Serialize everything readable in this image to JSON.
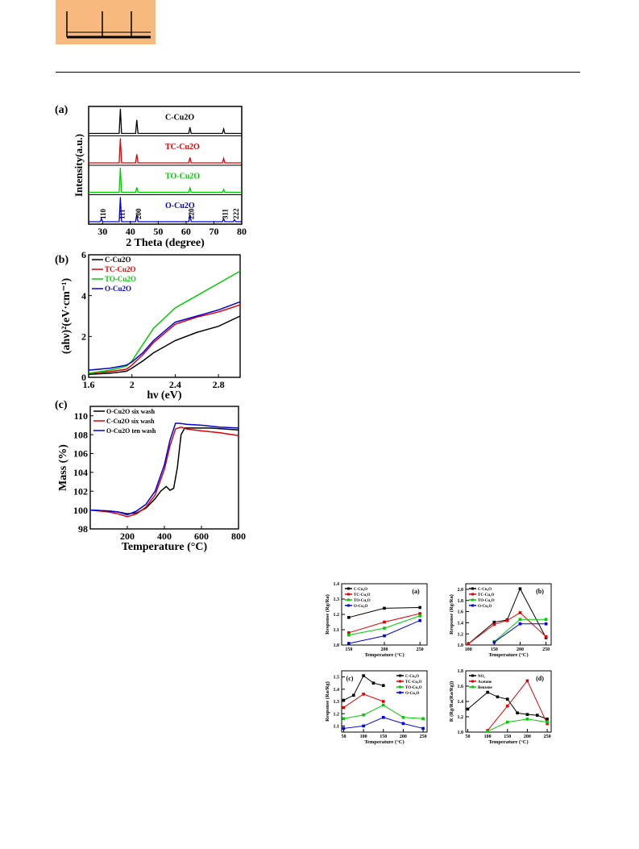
{
  "header": {
    "logo": "journal-logo"
  },
  "figure1": {
    "panels": [
      {
        "label": "(a)"
      },
      {
        "label": "(b)"
      },
      {
        "label": "(c)"
      }
    ]
  },
  "chart_data": [
    {
      "type": "line",
      "panel": "(a)",
      "xlabel": "2 Theta (degree)",
      "ylabel": "Intensity(a.u.)",
      "xlim": [
        25,
        80
      ],
      "x_ticks": [
        30,
        40,
        50,
        60,
        70,
        80
      ],
      "peak_labels": [
        "110",
        "111",
        "200",
        "220",
        "311",
        "222"
      ],
      "peak_positions": [
        29.6,
        36.4,
        42.3,
        61.4,
        73.5,
        77.4
      ],
      "series": [
        {
          "name": "C-Cu2O",
          "color": "#000000",
          "peaks": [
            36.4,
            42.3,
            61.4,
            73.5
          ],
          "heights": [
            1.0,
            0.55,
            0.25,
            0.18
          ]
        },
        {
          "name": "TC-Cu2O",
          "color": "#e00000",
          "peaks": [
            36.4,
            42.3,
            61.4,
            73.5
          ],
          "heights": [
            1.0,
            0.35,
            0.22,
            0.18
          ]
        },
        {
          "name": "TO-Cu2O",
          "color": "#00cc00",
          "peaks": [
            36.4,
            42.3,
            61.4,
            73.5
          ],
          "heights": [
            1.0,
            0.2,
            0.18,
            0.12
          ]
        },
        {
          "name": "O-Cu2O",
          "color": "#0000e0",
          "peaks": [
            29.6,
            36.4,
            42.3,
            61.4,
            73.5,
            77.4
          ],
          "heights": [
            0.12,
            1.0,
            0.3,
            0.3,
            0.12,
            0.08
          ]
        }
      ]
    },
    {
      "type": "line",
      "panel": "(b)",
      "xlabel": "hν (eV)",
      "ylabel": "(ahν)²(eV·cm⁻¹)",
      "xlim": [
        1.6,
        3.0
      ],
      "ylim": [
        0,
        6
      ],
      "x_ticks": [
        1.6,
        2.0,
        2.4,
        2.8
      ],
      "y_ticks": [
        0,
        2,
        4,
        6
      ],
      "legend": "top-left",
      "series": [
        {
          "name": "C-Cu2O",
          "color": "#000000",
          "x": [
            1.6,
            1.8,
            1.95,
            2.0,
            2.1,
            2.2,
            2.4,
            2.6,
            2.8,
            3.0
          ],
          "y": [
            0.15,
            0.2,
            0.3,
            0.45,
            0.8,
            1.2,
            1.8,
            2.2,
            2.5,
            3.0
          ]
        },
        {
          "name": "TC-Cu2O",
          "color": "#e00000",
          "x": [
            1.6,
            1.8,
            1.95,
            2.0,
            2.1,
            2.2,
            2.4,
            2.6,
            2.8,
            3.0
          ],
          "y": [
            0.2,
            0.28,
            0.4,
            0.6,
            1.1,
            1.7,
            2.6,
            2.95,
            3.2,
            3.55
          ]
        },
        {
          "name": "TO-Cu2O",
          "color": "#00cc00",
          "x": [
            1.6,
            1.8,
            1.95,
            2.0,
            2.1,
            2.2,
            2.4,
            2.6,
            2.8,
            3.0
          ],
          "y": [
            0.2,
            0.35,
            0.55,
            0.8,
            1.6,
            2.4,
            3.4,
            4.0,
            4.6,
            5.2
          ]
        },
        {
          "name": "O-Cu2O",
          "color": "#0000e0",
          "x": [
            1.6,
            1.8,
            1.95,
            2.0,
            2.1,
            2.2,
            2.4,
            2.6,
            2.8,
            3.0
          ],
          "y": [
            0.35,
            0.45,
            0.6,
            0.75,
            1.2,
            1.8,
            2.7,
            3.0,
            3.3,
            3.7
          ]
        }
      ]
    },
    {
      "type": "line",
      "panel": "(c)",
      "xlabel": "Temperature (°C)",
      "ylabel": "Mass (%)",
      "xlim": [
        0,
        800
      ],
      "ylim": [
        98,
        111
      ],
      "x_ticks": [
        200,
        400,
        600,
        800
      ],
      "y_ticks": [
        98,
        100,
        102,
        104,
        106,
        108,
        110
      ],
      "legend": "top-left",
      "series": [
        {
          "name": "O-Cu2O six wash",
          "color": "#000000",
          "x": [
            0,
            100,
            150,
            200,
            250,
            300,
            350,
            380,
            410,
            430,
            450,
            470,
            490,
            510,
            550,
            650,
            800
          ],
          "y": [
            100.0,
            99.9,
            99.8,
            99.6,
            99.7,
            100.2,
            101.2,
            102.0,
            102.5,
            102.1,
            102.3,
            104.5,
            108.0,
            108.7,
            108.7,
            108.7,
            108.5
          ]
        },
        {
          "name": "C-Cu2O six wash",
          "color": "#e00000",
          "x": [
            0,
            100,
            150,
            200,
            250,
            300,
            350,
            400,
            430,
            460,
            490,
            520,
            600,
            700,
            800
          ],
          "y": [
            100.0,
            99.8,
            99.6,
            99.3,
            99.6,
            100.3,
            101.6,
            104.3,
            106.8,
            108.6,
            108.8,
            108.6,
            108.4,
            108.2,
            107.9
          ]
        },
        {
          "name": "O-Cu2O ten wash",
          "color": "#0000e0",
          "x": [
            0,
            100,
            150,
            200,
            250,
            300,
            350,
            400,
            430,
            460,
            480,
            520,
            600,
            700,
            800
          ],
          "y": [
            100.0,
            99.9,
            99.8,
            99.5,
            99.9,
            100.6,
            102.0,
            104.8,
            107.4,
            109.2,
            109.2,
            109.1,
            109.0,
            108.8,
            108.7
          ]
        }
      ]
    },
    {
      "type": "line",
      "panel": "(a)",
      "xlabel": "Temperature (°C)",
      "ylabel": "Response (Rg/Ra)",
      "xlim": [
        140,
        260
      ],
      "ylim": [
        1.0,
        1.4
      ],
      "x_ticks": [
        150,
        200,
        250
      ],
      "y_ticks": [
        1.0,
        1.1,
        1.2,
        1.3,
        1.4
      ],
      "x_tick_labels": [
        "150",
        "200",
        "250"
      ],
      "y_tick_labels": [
        "1.0",
        "1.1",
        "1.2",
        "1.3",
        "1.4"
      ],
      "legend": "top-left",
      "series": [
        {
          "name": "C-Cu₂O",
          "color": "#000000",
          "x": [
            150,
            200,
            250
          ],
          "y": [
            1.18,
            1.24,
            1.245
          ]
        },
        {
          "name": "TC-Cu₂O",
          "color": "#e00000",
          "x": [
            150,
            200,
            250
          ],
          "y": [
            1.08,
            1.15,
            1.205
          ]
        },
        {
          "name": "TO-Cu₂O",
          "color": "#00cc00",
          "x": [
            150,
            200,
            250
          ],
          "y": [
            1.065,
            1.11,
            1.19
          ]
        },
        {
          "name": "O-Cu₂O",
          "color": "#0000e0",
          "x": [
            150,
            200,
            250
          ],
          "y": [
            1.01,
            1.06,
            1.16
          ]
        }
      ]
    },
    {
      "type": "line",
      "panel": "(b)",
      "xlabel": "Temperature (°C)",
      "ylabel": "Response (Rg/Ra)",
      "xlim": [
        95,
        260
      ],
      "ylim": [
        1.0,
        2.1
      ],
      "x_ticks": [
        100,
        150,
        200,
        250
      ],
      "y_ticks": [
        1.0,
        1.2,
        1.4,
        1.6,
        1.8,
        2.0
      ],
      "x_tick_labels": [
        "100",
        "150",
        "200",
        "250"
      ],
      "y_tick_labels": [
        "1.0",
        "1.2",
        "1.4",
        "1.6",
        "1.8",
        "2.0"
      ],
      "legend": "top-left",
      "series": [
        {
          "name": "C-Cu₂O",
          "color": "#000000",
          "x": [
            100,
            150,
            175,
            200,
            250
          ],
          "y": [
            1.02,
            1.41,
            1.45,
            2.01,
            1.13
          ]
        },
        {
          "name": "TC-Cu₂O",
          "color": "#e00000",
          "x": [
            100,
            150,
            175,
            200,
            250
          ],
          "y": [
            1.02,
            1.37,
            1.44,
            1.58,
            1.15
          ]
        },
        {
          "name": "TO-Cu₂O",
          "color": "#00cc00",
          "x": [
            150,
            200,
            250
          ],
          "y": [
            1.06,
            1.46,
            1.46
          ]
        },
        {
          "name": "O-Cu₂O",
          "color": "#0000e0",
          "x": [
            150,
            200,
            250
          ],
          "y": [
            1.05,
            1.38,
            1.38
          ]
        }
      ]
    },
    {
      "type": "line",
      "panel": "(c)",
      "xlabel": "Temperature (°C)",
      "ylabel": "Response (Ra/Rg)",
      "xlim": [
        45,
        260
      ],
      "ylim": [
        1.05,
        1.55
      ],
      "x_ticks": [
        50,
        100,
        150,
        200,
        250
      ],
      "y_ticks": [
        1.1,
        1.2,
        1.3,
        1.4,
        1.5
      ],
      "x_tick_labels": [
        "50",
        "100",
        "150",
        "200",
        "250"
      ],
      "y_tick_labels": [
        "1.1",
        "1.2",
        "1.3",
        "1.4",
        "1.5"
      ],
      "legend": "top-right",
      "series": [
        {
          "name": "C-Cu₂O",
          "color": "#000000",
          "x": [
            50,
            75,
            100,
            125,
            150
          ],
          "y": [
            1.31,
            1.35,
            1.51,
            1.45,
            1.43
          ]
        },
        {
          "name": "TC-Cu₂O",
          "color": "#e00000",
          "x": [
            50,
            100,
            150
          ],
          "y": [
            1.25,
            1.36,
            1.3
          ]
        },
        {
          "name": "TO-Cu₂O",
          "color": "#00cc00",
          "x": [
            50,
            100,
            150,
            200,
            250
          ],
          "y": [
            1.16,
            1.19,
            1.27,
            1.17,
            1.16
          ]
        },
        {
          "name": "O-Cu₂O",
          "color": "#0000e0",
          "x": [
            50,
            100,
            150,
            200,
            250
          ],
          "y": [
            1.08,
            1.1,
            1.17,
            1.12,
            1.08
          ]
        }
      ]
    },
    {
      "type": "line",
      "panel": "(d)",
      "xlabel": "Temperature (°C)",
      "ylabel": "R (Rg/Ra(Ra/Rg))",
      "xlim": [
        45,
        260
      ],
      "ylim": [
        1.0,
        1.8
      ],
      "x_ticks": [
        50,
        100,
        150,
        200,
        250
      ],
      "y_ticks": [
        1.0,
        1.2,
        1.4,
        1.6,
        1.8
      ],
      "x_tick_labels": [
        "50",
        "100",
        "150",
        "200",
        "250"
      ],
      "y_tick_labels": [
        "1.0",
        "1.2",
        "1.4",
        "1.6",
        "1.8"
      ],
      "legend": "top-left",
      "series": [
        {
          "name": "NO₂",
          "color": "#000000",
          "x": [
            50,
            100,
            125,
            150,
            175,
            200,
            225,
            250
          ],
          "y": [
            1.3,
            1.52,
            1.46,
            1.43,
            1.25,
            1.23,
            1.22,
            1.17
          ]
        },
        {
          "name": "Acetone",
          "color": "#e00000",
          "x": [
            100,
            150,
            200,
            250
          ],
          "y": [
            1.02,
            1.34,
            1.67,
            1.11
          ]
        },
        {
          "name": "Benzene",
          "color": "#00cc00",
          "x": [
            100,
            150,
            200,
            250
          ],
          "y": [
            1.01,
            1.13,
            1.17,
            1.13
          ]
        }
      ]
    }
  ]
}
